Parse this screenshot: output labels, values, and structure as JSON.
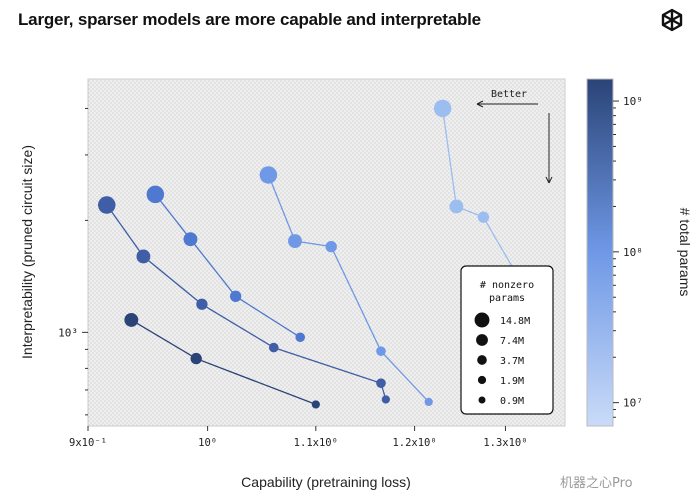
{
  "title": "Larger, sparser models are more capable and interpretable",
  "watermark": "机器之心Pro",
  "colors": {
    "darkest": "#2b4478",
    "dark": "#3f5ea6",
    "mid": "#4f79d0",
    "light": "#6f98e6",
    "lightest": "#9cbdf0",
    "plot_bg": "#e9e9e9"
  },
  "chart_data": {
    "type": "scatter",
    "xlabel": "Capability (pretraining loss)",
    "ylabel": "Interpretability (pruned circuit size)",
    "x_scale": "log",
    "y_scale": "log",
    "xlim": [
      0.9,
      1.37
    ],
    "x_ticks": [
      {
        "value": 0.9,
        "label": "9x10⁻¹"
      },
      {
        "value": 1.0,
        "label": "10⁰"
      },
      {
        "value": 1.1,
        "label": "1.1x10⁰"
      },
      {
        "value": 1.2,
        "label": "1.2x10⁰"
      },
      {
        "value": 1.3,
        "label": "1.3x10⁰"
      }
    ],
    "y_ticks": [
      {
        "value": 1000,
        "label": "10³"
      }
    ],
    "grid": false,
    "annotation": {
      "text": "Better",
      "direction": "left-down"
    },
    "colorbar": {
      "label": "# total params",
      "scale": "log",
      "range": [
        7000000,
        1400000000
      ],
      "ticks": [
        {
          "value": 10000000,
          "label": "10⁷"
        },
        {
          "value": 100000000,
          "label": "10⁸"
        },
        {
          "value": 1000000000,
          "label": "10⁹"
        }
      ],
      "colors": [
        "#c9dbf8",
        "#6f98e6",
        "#2b4478"
      ]
    },
    "size_legend": {
      "title": "# nonzero params",
      "placement": "bottom-right",
      "entries": [
        {
          "label": "14.8M",
          "value": 14.8
        },
        {
          "label": "7.4M",
          "value": 7.4
        },
        {
          "label": "3.7M",
          "value": 3.7
        },
        {
          "label": "1.9M",
          "value": 1.9
        },
        {
          "label": "0.9M",
          "value": 0.9
        }
      ]
    },
    "series": [
      {
        "total_params": 30000000,
        "color": "#2b4478",
        "points": [
          {
            "x": 0.935,
            "y": 1080,
            "nonzero": 7.4
          },
          {
            "x": 0.99,
            "y": 850,
            "nonzero": 3.7
          },
          {
            "x": 1.1,
            "y": 640,
            "nonzero": 0.9
          }
        ]
      },
      {
        "total_params": 100000000,
        "color": "#3f5ea6",
        "points": [
          {
            "x": 0.915,
            "y": 2200,
            "nonzero": 14.8
          },
          {
            "x": 0.945,
            "y": 1600,
            "nonzero": 7.4
          },
          {
            "x": 0.995,
            "y": 1190,
            "nonzero": 3.7
          },
          {
            "x": 1.06,
            "y": 910,
            "nonzero": 1.9
          },
          {
            "x": 1.165,
            "y": 730,
            "nonzero": 1.9
          },
          {
            "x": 1.17,
            "y": 660,
            "nonzero": 0.9
          }
        ]
      },
      {
        "total_params": 200000000,
        "color": "#4f79d0",
        "points": [
          {
            "x": 0.955,
            "y": 2350,
            "nonzero": 14.8
          },
          {
            "x": 0.985,
            "y": 1780,
            "nonzero": 7.4
          },
          {
            "x": 1.025,
            "y": 1250,
            "nonzero": 3.7
          },
          {
            "x": 1.085,
            "y": 970,
            "nonzero": 1.9
          }
        ]
      },
      {
        "total_params": 400000000,
        "color": "#6f98e6",
        "points": [
          {
            "x": 1.055,
            "y": 2650,
            "nonzero": 14.8
          },
          {
            "x": 1.08,
            "y": 1760,
            "nonzero": 7.4
          },
          {
            "x": 1.115,
            "y": 1700,
            "nonzero": 3.7
          },
          {
            "x": 1.165,
            "y": 890,
            "nonzero": 1.9
          },
          {
            "x": 1.215,
            "y": 650,
            "nonzero": 0.9
          }
        ]
      },
      {
        "total_params": 1000000000,
        "color": "#9cbdf0",
        "points": [
          {
            "x": 1.23,
            "y": 4000,
            "nonzero": 14.8
          },
          {
            "x": 1.245,
            "y": 2180,
            "nonzero": 7.4
          },
          {
            "x": 1.275,
            "y": 2040,
            "nonzero": 3.7
          },
          {
            "x": 1.325,
            "y": 1280,
            "nonzero": 0.9
          }
        ]
      }
    ]
  }
}
